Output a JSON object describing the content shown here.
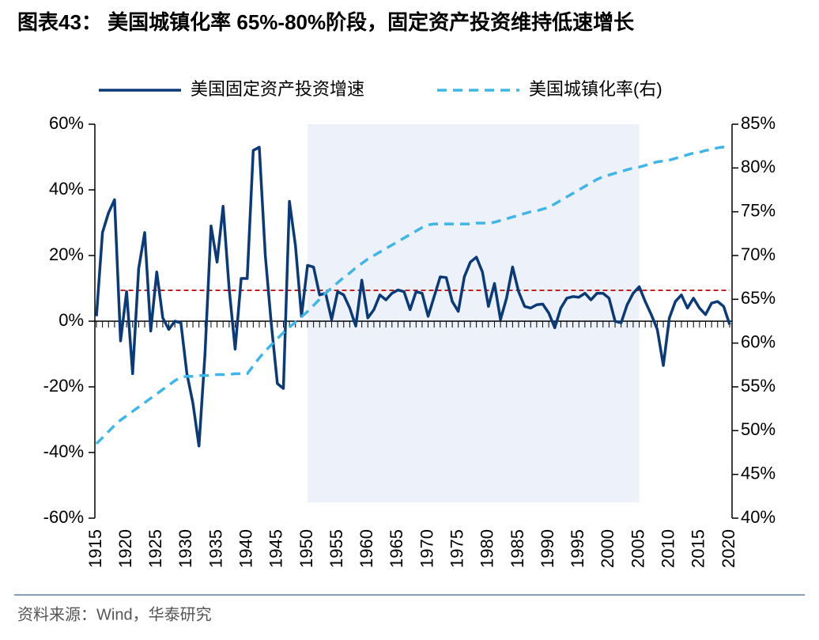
{
  "chart_data": {
    "type": "line",
    "title": "图表43： 美国城镇化率 65%-80%阶段，固定资产投资维持低速增长",
    "source": "资料来源：Wind，华泰研究",
    "x": [
      1915,
      1916,
      1917,
      1918,
      1919,
      1920,
      1921,
      1922,
      1923,
      1924,
      1925,
      1926,
      1927,
      1928,
      1929,
      1930,
      1931,
      1932,
      1933,
      1934,
      1935,
      1936,
      1937,
      1938,
      1939,
      1940,
      1941,
      1942,
      1943,
      1944,
      1945,
      1946,
      1947,
      1948,
      1949,
      1950,
      1951,
      1952,
      1953,
      1954,
      1955,
      1956,
      1957,
      1958,
      1959,
      1960,
      1961,
      1962,
      1963,
      1964,
      1965,
      1966,
      1967,
      1968,
      1969,
      1970,
      1971,
      1972,
      1973,
      1974,
      1975,
      1976,
      1977,
      1978,
      1979,
      1980,
      1981,
      1982,
      1983,
      1984,
      1985,
      1986,
      1987,
      1988,
      1989,
      1990,
      1991,
      1992,
      1993,
      1994,
      1995,
      1996,
      1997,
      1998,
      1999,
      2000,
      2001,
      2002,
      2003,
      2004,
      2005,
      2006,
      2007,
      2008,
      2009,
      2010,
      2011,
      2012,
      2013,
      2014,
      2015,
      2016,
      2017,
      2018,
      2019,
      2020
    ],
    "xlim": [
      1915,
      2020
    ],
    "xticks": [
      1915,
      1920,
      1925,
      1930,
      1935,
      1940,
      1945,
      1950,
      1955,
      1960,
      1965,
      1970,
      1975,
      1980,
      1985,
      1990,
      1995,
      2000,
      2005,
      2010,
      2015,
      2020
    ],
    "ylim": [
      -60,
      60
    ],
    "yticks": [
      {
        "value": -60,
        "label": "-60%"
      },
      {
        "value": -40,
        "label": "-40%"
      },
      {
        "value": -20,
        "label": "-20%"
      },
      {
        "value": 0,
        "label": "0%"
      },
      {
        "value": 20,
        "label": "20%"
      },
      {
        "value": 40,
        "label": "40%"
      },
      {
        "value": 60,
        "label": "60%"
      }
    ],
    "y2lim": [
      40,
      85
    ],
    "y2ticks": [
      {
        "value": 40,
        "label": "40%"
      },
      {
        "value": 45,
        "label": "45%"
      },
      {
        "value": 50,
        "label": "50%"
      },
      {
        "value": 55,
        "label": "55%"
      },
      {
        "value": 60,
        "label": "60%"
      },
      {
        "value": 65,
        "label": "65%"
      },
      {
        "value": 70,
        "label": "70%"
      },
      {
        "value": 75,
        "label": "75%"
      },
      {
        "value": 80,
        "label": "80%"
      },
      {
        "value": 85,
        "label": "85%"
      }
    ],
    "shaded_range": [
      1950,
      2005
    ],
    "shade_color": "#edf1f9",
    "reference_line": 9.4,
    "reference_color": "#c00000",
    "legend": "top",
    "series": [
      {
        "name": "美国固定资产投资增速",
        "color": "#0b3a78",
        "dash": false,
        "values": [
          1.5,
          27,
          33,
          37,
          -6,
          9,
          -16,
          16,
          27,
          -3,
          15,
          1,
          -2.5,
          0,
          -0.5,
          -16,
          -25,
          -38,
          -10,
          29,
          18,
          35,
          10,
          -8.5,
          13,
          13,
          52,
          53,
          20,
          -1,
          -19,
          -20.5,
          36.5,
          23,
          1.5,
          17,
          16.5,
          8,
          8.5,
          0.5,
          9,
          8,
          4,
          -1.5,
          12.5,
          1,
          3.5,
          8,
          6.5,
          8.5,
          9.5,
          9,
          3.5,
          9,
          8.5,
          1.5,
          7.5,
          13.5,
          13.3,
          6,
          3,
          13.5,
          18,
          19.5,
          15,
          4.5,
          11.5,
          0.5,
          7,
          16.5,
          9,
          4.5,
          4,
          5,
          5.2,
          2.5,
          -2,
          4,
          7,
          7.5,
          7.3,
          8.5,
          6.5,
          8.5,
          8.5,
          7,
          0,
          -0.5,
          5,
          8.5,
          10.5,
          6,
          2,
          -2.5,
          -13.5,
          1,
          6,
          8,
          4,
          7,
          4,
          2,
          5.5,
          6,
          4.5,
          -1
        ]
      },
      {
        "name": "美国城镇化率(右)",
        "color": "#3fb6e8",
        "dash": true,
        "axis": "y2",
        "values": [
          48.5,
          49.2,
          49.9,
          50.6,
          51.2,
          51.7,
          52.2,
          52.7,
          53.2,
          53.7,
          54.2,
          54.7,
          55.2,
          55.7,
          56.1,
          56.2,
          56.2,
          56.3,
          56.3,
          56.3,
          56.4,
          56.4,
          56.4,
          56.5,
          56.5,
          56.5,
          57.4,
          58.3,
          59.1,
          59.8,
          60.5,
          61.2,
          61.8,
          62.4,
          63,
          63.6,
          64.3,
          65,
          65.7,
          66.3,
          66.9,
          67.5,
          68,
          68.6,
          69.1,
          69.6,
          70,
          70.4,
          70.8,
          71.2,
          71.6,
          72,
          72.4,
          72.8,
          73.2,
          73.5,
          73.6,
          73.6,
          73.6,
          73.6,
          73.6,
          73.6,
          73.6,
          73.7,
          73.7,
          73.7,
          73.8,
          74,
          74.2,
          74.4,
          74.6,
          74.8,
          75,
          75.1,
          75.3,
          75.5,
          75.9,
          76.3,
          76.7,
          77.1,
          77.5,
          77.9,
          78.3,
          78.7,
          79,
          79.2,
          79.4,
          79.6,
          79.8,
          80,
          80.1,
          80.3,
          80.5,
          80.7,
          80.8,
          80.9,
          81.1,
          81.3,
          81.5,
          81.7,
          81.8,
          82,
          82.1,
          82.3,
          82.4,
          82.6
        ]
      }
    ]
  }
}
